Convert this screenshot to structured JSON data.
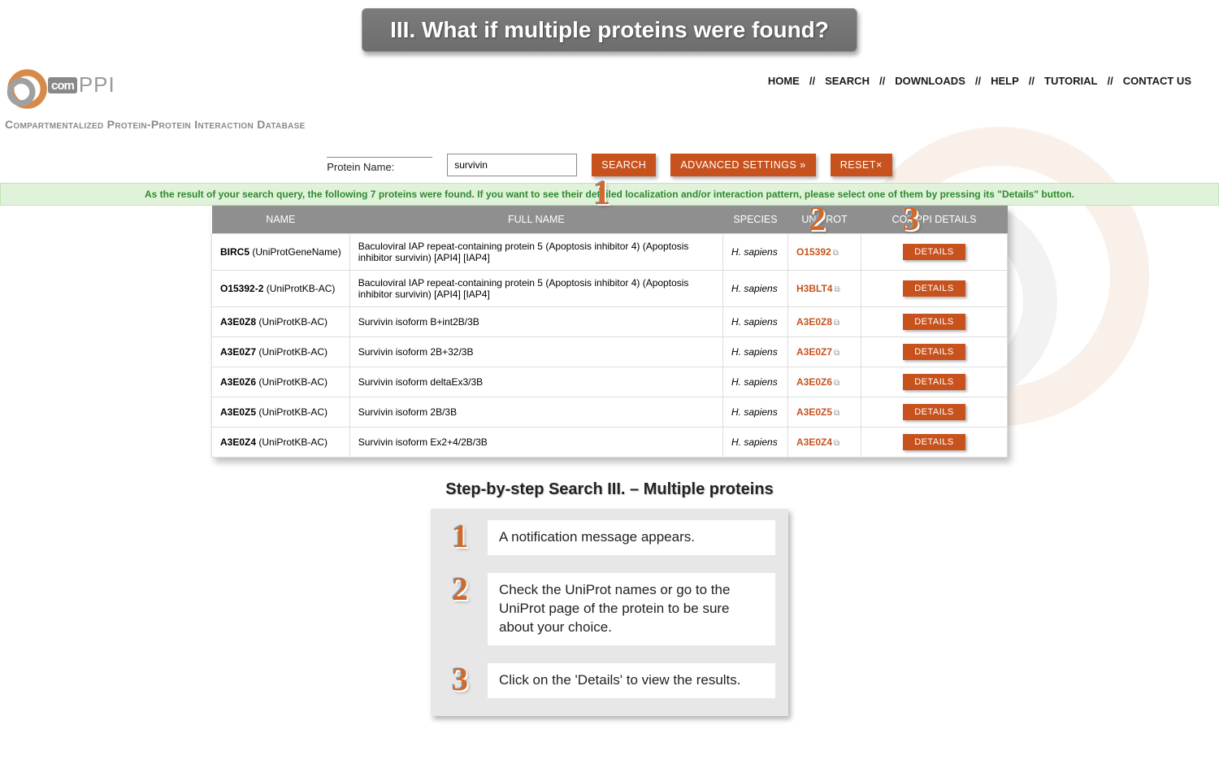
{
  "banner_title": "III. What if multiple proteins were found?",
  "logo_text_com": "com",
  "logo_text_ppi": "PPI",
  "logo_subtitle": "Compartmentalized Protein-Protein Interaction Database",
  "nav": {
    "home": "HOME",
    "search": "SEARCH",
    "downloads": "DOWNLOADS",
    "help": "HELP",
    "tutorial": "TUTORIAL",
    "contact": "CONTACT US"
  },
  "search": {
    "label": "Protein Name:",
    "value": "survivin",
    "search_btn": "SEARCH",
    "advanced_btn": "ADVANCED SETTINGS »",
    "reset_btn": "RESET×"
  },
  "notification": "As the result of your search query, the following 7 proteins were found. If you want to see their detailed localization and/or interaction pattern, please select one of them by pressing its \"Details\" button.",
  "columns": {
    "name": "NAME",
    "fullname": "FULL NAME",
    "species": "SPECIES",
    "uniprot": "UNIPROT",
    "details": "COMPPI DETAILS"
  },
  "details_btn_label": "DETAILS",
  "rows": [
    {
      "name": "BIRC5",
      "src": "(UniProtGeneName)",
      "full": "Baculoviral IAP repeat-containing protein 5 (Apoptosis inhibitor 4) (Apoptosis inhibitor survivin) [API4] [IAP4]",
      "species": "H. sapiens",
      "uniprot": "O15392"
    },
    {
      "name": "O15392-2",
      "src": "(UniProtKB-AC)",
      "full": "Baculoviral IAP repeat-containing protein 5 (Apoptosis inhibitor 4) (Apoptosis inhibitor survivin) [API4] [IAP4]",
      "species": "H. sapiens",
      "uniprot": "H3BLT4"
    },
    {
      "name": "A3E0Z8",
      "src": "(UniProtKB-AC)",
      "full": "Survivin isoform B+int2B/3B",
      "species": "H. sapiens",
      "uniprot": "A3E0Z8"
    },
    {
      "name": "A3E0Z7",
      "src": "(UniProtKB-AC)",
      "full": "Survivin isoform 2B+32/3B",
      "species": "H. sapiens",
      "uniprot": "A3E0Z7"
    },
    {
      "name": "A3E0Z6",
      "src": "(UniProtKB-AC)",
      "full": "Survivin isoform deltaEx3/3B",
      "species": "H. sapiens",
      "uniprot": "A3E0Z6"
    },
    {
      "name": "A3E0Z5",
      "src": "(UniProtKB-AC)",
      "full": "Survivin isoform 2B/3B",
      "species": "H. sapiens",
      "uniprot": "A3E0Z5"
    },
    {
      "name": "A3E0Z4",
      "src": "(UniProtKB-AC)",
      "full": "Survivin isoform Ex2+4/2B/3B",
      "species": "H. sapiens",
      "uniprot": "A3E0Z4"
    }
  ],
  "steps_title": "Step-by-step Search III. – Multiple proteins",
  "steps": [
    {
      "n": "1",
      "text": "A notification message appears."
    },
    {
      "n": "2",
      "text": "Check the UniProt names or go to the UniProt page of the protein to be sure about your choice."
    },
    {
      "n": "3",
      "text": "Click on the 'Details' to view the results."
    }
  ],
  "colors": {
    "accent": "#c7521d",
    "banner_bg": "#6e6e6e",
    "table_header": "#8f8f8f",
    "notif_bg": "#e1f2db",
    "notif_text": "#2d8a2d",
    "callout": "#d06a2b"
  }
}
